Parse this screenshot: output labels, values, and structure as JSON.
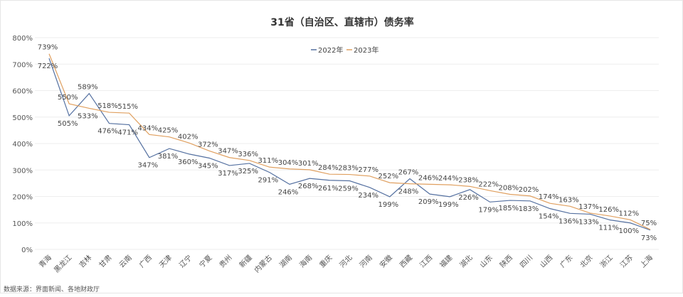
{
  "chart_data": {
    "type": "line",
    "title": "31省（自治区、直辖市）债务率",
    "xlabel": "",
    "ylabel": "",
    "ylim": [
      0,
      800
    ],
    "yticks": [
      "0%",
      "100%",
      "200%",
      "300%",
      "400%",
      "500%",
      "600%",
      "700%",
      "800%"
    ],
    "grid": true,
    "legend_position": "top-center",
    "categories": [
      "青海",
      "黑龙江",
      "吉林",
      "甘肃",
      "云南",
      "广西",
      "天津",
      "辽宁",
      "宁夏",
      "贵州",
      "新疆",
      "内蒙古",
      "湖南",
      "海南",
      "重庆",
      "河北",
      "河南",
      "安徽",
      "西藏",
      "江西",
      "福建",
      "湖北",
      "山东",
      "陕西",
      "四川",
      "山西",
      "广东",
      "北京",
      "浙江",
      "江苏",
      "上海"
    ],
    "series": [
      {
        "name": "2022年",
        "color": "#5470a0",
        "values": [
          722,
          505,
          589,
          476,
          471,
          347,
          381,
          360,
          345,
          317,
          325,
          291,
          246,
          268,
          261,
          259,
          234,
          199,
          267,
          209,
          199,
          226,
          179,
          185,
          183,
          154,
          136,
          133,
          111,
          100,
          73
        ]
      },
      {
        "name": "2023年",
        "color": "#e0a060",
        "values": [
          739,
          550,
          533,
          518,
          515,
          434,
          425,
          402,
          372,
          347,
          336,
          311,
          304,
          301,
          284,
          283,
          277,
          252,
          248,
          246,
          244,
          238,
          222,
          208,
          202,
          174,
          163,
          137,
          126,
          112,
          75
        ]
      }
    ],
    "value_suffix": "%"
  },
  "footer": {
    "source": "数据来源：界面新闻、各地财政厅"
  }
}
